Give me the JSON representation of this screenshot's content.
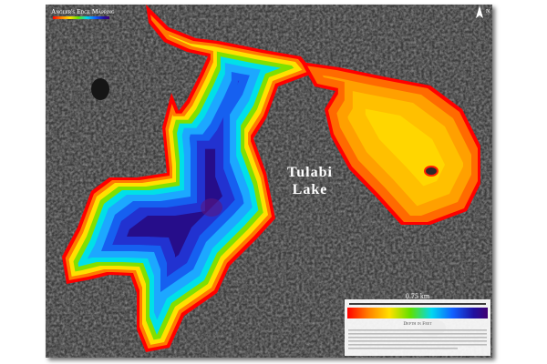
{
  "logo": {
    "title": "Angler's Edge Mapping"
  },
  "lake_label": {
    "line1": "Tulabi",
    "line2": "Lake"
  },
  "legend": {
    "scale": "0.75 km",
    "depth_label": "Depth in Feet"
  },
  "compass": "N"
}
